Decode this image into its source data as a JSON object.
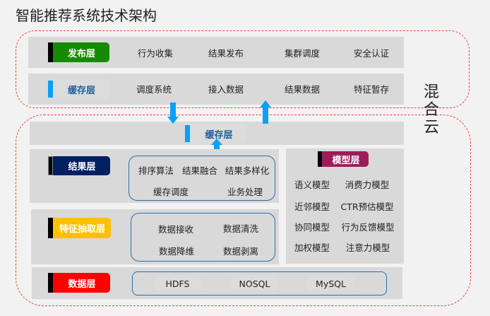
{
  "title": "智能推荐系统技术架构",
  "cloud_label": "混合云",
  "publish": {
    "label": "发布层",
    "color": "#168a00",
    "items": [
      "行为收集",
      "结果发布",
      "集群调度",
      "安全认证"
    ]
  },
  "cache_top": {
    "label": "缓存层",
    "items": [
      "调度系统",
      "接入数据",
      "结果数据",
      "特征暂存"
    ]
  },
  "cache_mid": {
    "label": "缓存层"
  },
  "result": {
    "label": "结果层",
    "color": "#002060",
    "items": [
      "排序算法",
      "结果融合",
      "结果多样化",
      "缓存调度",
      "业务处理"
    ]
  },
  "feature": {
    "label": "特征抽取层",
    "color": "#ffc000",
    "items": [
      "数据接收",
      "数据清洗",
      "数据降维",
      "数据剥离"
    ]
  },
  "model": {
    "label": "模型层",
    "color": "#9b1d5a",
    "items": [
      "语义模型",
      "消费力模型",
      "近邻模型",
      "CTR预估模型",
      "协同模型",
      "行为反馈模型",
      "加权模型",
      "注意力模型"
    ]
  },
  "data": {
    "label": "数据层",
    "color": "#ff0000",
    "items": [
      "HDFS",
      "NOSQL",
      "MySQL"
    ]
  },
  "arrow_color": "#0aa0f5"
}
